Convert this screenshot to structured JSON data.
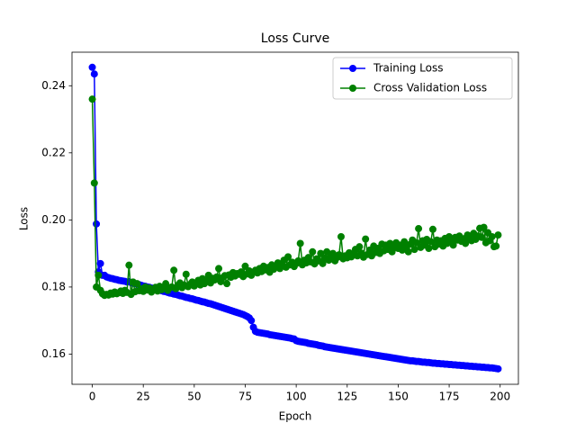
{
  "chart_data": {
    "type": "line",
    "title": "Loss Curve",
    "xlabel": "Epoch",
    "ylabel": "Loss",
    "x": [
      0,
      1,
      2,
      3,
      4,
      5,
      6,
      7,
      8,
      9,
      10,
      11,
      12,
      13,
      14,
      15,
      16,
      17,
      18,
      19,
      20,
      21,
      22,
      23,
      24,
      25,
      26,
      27,
      28,
      29,
      30,
      31,
      32,
      33,
      34,
      35,
      36,
      37,
      38,
      39,
      40,
      41,
      42,
      43,
      44,
      45,
      46,
      47,
      48,
      49,
      50,
      51,
      52,
      53,
      54,
      55,
      56,
      57,
      58,
      59,
      60,
      61,
      62,
      63,
      64,
      65,
      66,
      67,
      68,
      69,
      70,
      71,
      72,
      73,
      74,
      75,
      76,
      77,
      78,
      79,
      80,
      81,
      82,
      83,
      84,
      85,
      86,
      87,
      88,
      89,
      90,
      91,
      92,
      93,
      94,
      95,
      96,
      97,
      98,
      99,
      100,
      101,
      102,
      103,
      104,
      105,
      106,
      107,
      108,
      109,
      110,
      111,
      112,
      113,
      114,
      115,
      116,
      117,
      118,
      119,
      120,
      121,
      122,
      123,
      124,
      125,
      126,
      127,
      128,
      129,
      130,
      131,
      132,
      133,
      134,
      135,
      136,
      137,
      138,
      139,
      140,
      141,
      142,
      143,
      144,
      145,
      146,
      147,
      148,
      149,
      150,
      151,
      152,
      153,
      154,
      155,
      156,
      157,
      158,
      159,
      160,
      161,
      162,
      163,
      164,
      165,
      166,
      167,
      168,
      169,
      170,
      171,
      172,
      173,
      174,
      175,
      176,
      177,
      178,
      179,
      180,
      181,
      182,
      183,
      184,
      185,
      186,
      187,
      188,
      189,
      190,
      191,
      192,
      193,
      194,
      195,
      196,
      197,
      198,
      199
    ],
    "series": [
      {
        "name": "Training Loss",
        "color": "#0000ff",
        "values": [
          0.2455,
          0.2435,
          0.1988,
          0.1845,
          0.187,
          0.1835,
          0.1835,
          0.183,
          0.1828,
          0.1826,
          0.1825,
          0.1823,
          0.1822,
          0.182,
          0.1819,
          0.1818,
          0.1817,
          0.1815,
          0.1816,
          0.1813,
          0.1811,
          0.181,
          0.1808,
          0.1807,
          0.1805,
          0.1803,
          0.1802,
          0.18,
          0.1799,
          0.1797,
          0.1795,
          0.1794,
          0.1792,
          0.179,
          0.1789,
          0.1787,
          0.1786,
          0.1784,
          0.1782,
          0.1781,
          0.1779,
          0.1778,
          0.1776,
          0.1774,
          0.1773,
          0.1771,
          0.1769,
          0.1768,
          0.1766,
          0.1765,
          0.1763,
          0.1761,
          0.176,
          0.1758,
          0.1756,
          0.1755,
          0.1753,
          0.1751,
          0.175,
          0.1748,
          0.1746,
          0.1744,
          0.1742,
          0.174,
          0.1738,
          0.1736,
          0.1734,
          0.1732,
          0.173,
          0.1728,
          0.1726,
          0.1724,
          0.1722,
          0.172,
          0.1718,
          0.1715,
          0.1712,
          0.1708,
          0.17,
          0.168,
          0.1668,
          0.1665,
          0.1664,
          0.1663,
          0.1662,
          0.1661,
          0.166,
          0.1658,
          0.1657,
          0.1656,
          0.1655,
          0.1654,
          0.1653,
          0.1652,
          0.1651,
          0.165,
          0.1649,
          0.1648,
          0.1646,
          0.1645,
          0.164,
          0.1638,
          0.1637,
          0.1636,
          0.1635,
          0.1634,
          0.1632,
          0.1631,
          0.163,
          0.1629,
          0.1628,
          0.1626,
          0.1625,
          0.1624,
          0.1622,
          0.1621,
          0.162,
          0.1619,
          0.1618,
          0.1617,
          0.1616,
          0.1615,
          0.1614,
          0.1613,
          0.1612,
          0.1611,
          0.161,
          0.1609,
          0.1608,
          0.1607,
          0.1606,
          0.1605,
          0.1604,
          0.1603,
          0.1602,
          0.1601,
          0.16,
          0.1599,
          0.1598,
          0.1597,
          0.1596,
          0.1595,
          0.1594,
          0.1593,
          0.1592,
          0.1591,
          0.159,
          0.1589,
          0.1588,
          0.1587,
          0.1586,
          0.1585,
          0.1584,
          0.1583,
          0.1582,
          0.1581,
          0.158,
          0.158,
          0.1579,
          0.1578,
          0.1578,
          0.1577,
          0.1576,
          0.1576,
          0.1575,
          0.1575,
          0.1574,
          0.1573,
          0.1573,
          0.1572,
          0.1572,
          0.1571,
          0.1571,
          0.157,
          0.157,
          0.1569,
          0.1569,
          0.1568,
          0.1568,
          0.1567,
          0.1567,
          0.1566,
          0.1566,
          0.1565,
          0.1565,
          0.1564,
          0.1564,
          0.1563,
          0.1563,
          0.1562,
          0.1562,
          0.1561,
          0.1561,
          0.156,
          0.156,
          0.1559,
          0.1559,
          0.1558,
          0.1557,
          0.1556
        ]
      },
      {
        "name": "Cross Validation Loss",
        "color": "#008000",
        "values": [
          0.236,
          0.211,
          0.18,
          0.1835,
          0.179,
          0.178,
          0.1775,
          0.1778,
          0.1776,
          0.1782,
          0.1779,
          0.1785,
          0.178,
          0.1783,
          0.1788,
          0.1781,
          0.179,
          0.1784,
          0.1865,
          0.1778,
          0.1815,
          0.1786,
          0.181,
          0.1789,
          0.1795,
          0.1787,
          0.18,
          0.1791,
          0.1797,
          0.1785,
          0.1793,
          0.1799,
          0.1788,
          0.1802,
          0.1792,
          0.1796,
          0.181,
          0.179,
          0.1798,
          0.18,
          0.185,
          0.1795,
          0.1805,
          0.1812,
          0.1798,
          0.1806,
          0.1838,
          0.1801,
          0.1808,
          0.1815,
          0.1803,
          0.1812,
          0.182,
          0.1806,
          0.1825,
          0.181,
          0.1818,
          0.1835,
          0.1812,
          0.1826,
          0.1821,
          0.183,
          0.1855,
          0.1816,
          0.1828,
          0.1834,
          0.181,
          0.1836,
          0.1829,
          0.1843,
          0.1833,
          0.184,
          0.1838,
          0.1845,
          0.1831,
          0.1862,
          0.1839,
          0.1848,
          0.1835,
          0.1844,
          0.185,
          0.1842,
          0.1855,
          0.1846,
          0.1862,
          0.1851,
          0.1858,
          0.1844,
          0.1866,
          0.1853,
          0.186,
          0.1872,
          0.1855,
          0.1868,
          0.188,
          0.1859,
          0.189,
          0.1866,
          0.1874,
          0.1861,
          0.187,
          0.1878,
          0.193,
          0.1866,
          0.188,
          0.1872,
          0.1888,
          0.1875,
          0.1905,
          0.1869,
          0.1884,
          0.1878,
          0.19,
          0.187,
          0.1886,
          0.1905,
          0.188,
          0.1892,
          0.19,
          0.1878,
          0.1888,
          0.1896,
          0.195,
          0.1884,
          0.1893,
          0.1887,
          0.1902,
          0.189,
          0.1898,
          0.1912,
          0.1893,
          0.192,
          0.1901,
          0.1889,
          0.1943,
          0.1897,
          0.191,
          0.1893,
          0.1922,
          0.1903,
          0.1915,
          0.19,
          0.1928,
          0.1908,
          0.1925,
          0.1912,
          0.193,
          0.1905,
          0.1918,
          0.1932,
          0.1915,
          0.1925,
          0.191,
          0.1935,
          0.192,
          0.1905,
          0.1928,
          0.194,
          0.1912,
          0.1932,
          0.1974,
          0.1918,
          0.1938,
          0.1925,
          0.1942,
          0.1915,
          0.1935,
          0.1972,
          0.192,
          0.194,
          0.1928,
          0.1938,
          0.1922,
          0.1945,
          0.193,
          0.195,
          0.1935,
          0.1925,
          0.1948,
          0.194,
          0.1952,
          0.1936,
          0.1944,
          0.193,
          0.1955,
          0.1945,
          0.1938,
          0.196,
          0.1942,
          0.1952,
          0.1975,
          0.1948,
          0.1978,
          0.1932,
          0.1962,
          0.1938,
          0.195,
          0.192,
          0.1922,
          0.1955
        ]
      }
    ],
    "xlim": [
      -9.95,
      208.95
    ],
    "xticks": [
      0,
      25,
      50,
      75,
      100,
      125,
      150,
      175,
      200
    ],
    "ylim": [
      0.151,
      0.25
    ],
    "yticks": [
      0.16,
      0.18,
      {
        "value": 0.2,
        "label": "0.20"
      },
      0.22,
      0.24
    ],
    "legend": "upper right",
    "grid": false
  }
}
